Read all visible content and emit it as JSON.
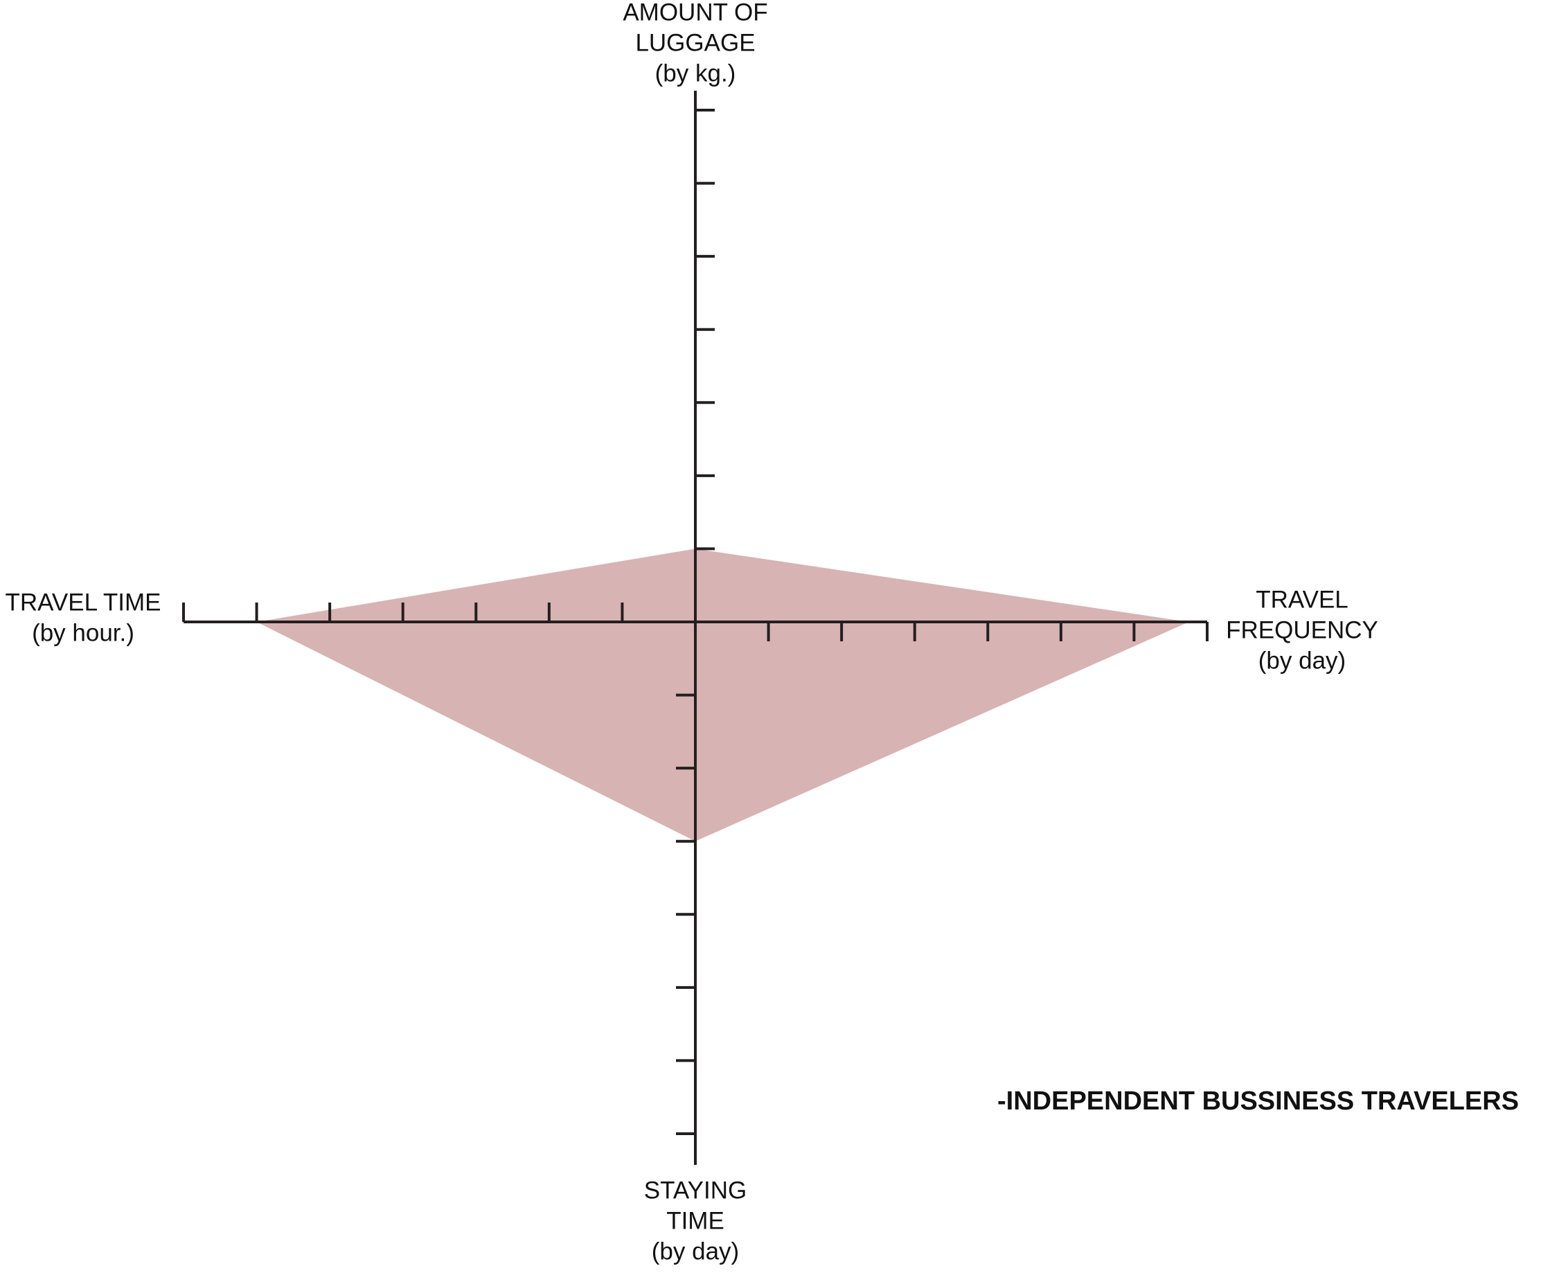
{
  "chart_data": {
    "type": "radar",
    "categories": [
      [
        "AMOUNT OF",
        "LUGGAGE",
        "(by kg.)"
      ],
      [
        "TRAVEL",
        "FREQUENCY",
        "(by day)"
      ],
      [
        "STAYING",
        "TIME",
        "(by day)"
      ],
      [
        "TRAVEL TIME",
        "(by hour.)"
      ]
    ],
    "rlim": [
      0,
      7
    ],
    "rticks": [
      1,
      2,
      3,
      4,
      5,
      6,
      7
    ],
    "series": [
      {
        "name": "-INDEPENDENT BUSSINESS TRAVELERS",
        "color": "#d8b3b3",
        "values": [
          1,
          6.75,
          3,
          6
        ]
      }
    ]
  }
}
